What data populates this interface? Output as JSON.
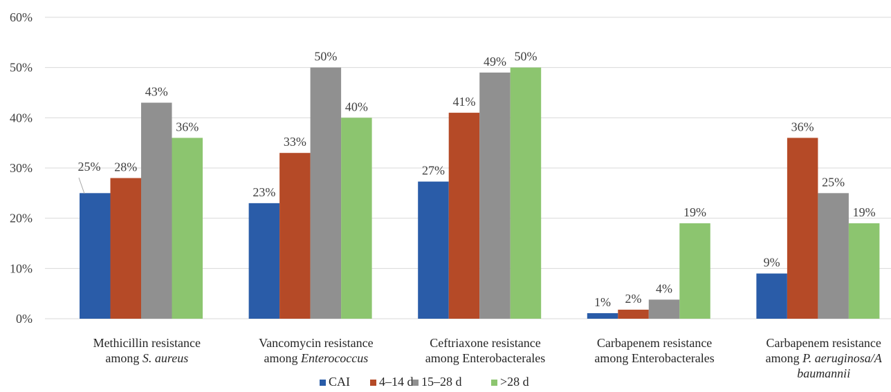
{
  "chart_data": {
    "type": "bar",
    "ylim": [
      0,
      60
    ],
    "yticks": [
      {
        "value": 0,
        "label": "0%"
      },
      {
        "value": 10,
        "label": "10%"
      },
      {
        "value": 20,
        "label": "20%"
      },
      {
        "value": 30,
        "label": "30%"
      },
      {
        "value": 40,
        "label": "40%"
      },
      {
        "value": 50,
        "label": "50%"
      },
      {
        "value": 60,
        "label": "60%"
      }
    ],
    "grid": true,
    "legend_position": "bottom",
    "categories": [
      {
        "lines": [
          [
            {
              "text": "Methicillin resistance"
            }
          ],
          [
            {
              "text": "among "
            },
            {
              "text": "S. aureus",
              "italic": true
            }
          ]
        ]
      },
      {
        "lines": [
          [
            {
              "text": "Vancomycin resistance"
            }
          ],
          [
            {
              "text": "among "
            },
            {
              "text": "Enterococcus",
              "italic": true
            }
          ]
        ]
      },
      {
        "lines": [
          [
            {
              "text": "Ceftriaxone resistance"
            }
          ],
          [
            {
              "text": "among Enterobacterales"
            }
          ]
        ]
      },
      {
        "lines": [
          [
            {
              "text": "Carbapenem resistance"
            }
          ],
          [
            {
              "text": "among Enterobacterales"
            }
          ]
        ]
      },
      {
        "lines": [
          [
            {
              "text": "Carbapenem resistance"
            }
          ],
          [
            {
              "text": "among "
            },
            {
              "text": "P. aeruginosa/A",
              "italic": true
            }
          ],
          [
            {
              "text": "baumannii",
              "italic": true
            }
          ]
        ]
      }
    ],
    "series": [
      {
        "name": "CAI",
        "color": "#2a5ca8",
        "values": [
          25,
          23,
          27.3,
          1.1,
          9
        ],
        "labels": [
          "25%",
          "23%",
          "27%",
          "1%",
          "9%"
        ]
      },
      {
        "name": "4–14 d",
        "color": "#b54a27",
        "values": [
          28,
          33,
          41,
          1.8,
          36
        ],
        "labels": [
          "28%",
          "33%",
          "41%",
          "2%",
          "36%"
        ]
      },
      {
        "name": "15–28 d",
        "color": "#909090",
        "values": [
          43,
          50,
          49,
          3.8,
          25
        ],
        "labels": [
          "43%",
          "50%",
          "49%",
          "4%",
          "25%"
        ]
      },
      {
        "name": ">28 d",
        "color": "#8cc56f",
        "values": [
          36,
          40,
          50,
          19,
          19
        ],
        "labels": [
          "36%",
          "40%",
          "50%",
          "19%",
          "19%"
        ]
      }
    ]
  }
}
